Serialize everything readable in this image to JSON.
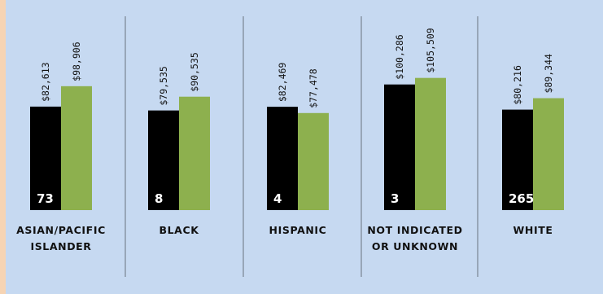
{
  "chart_data": {
    "type": "bar",
    "categories": [
      [
        "ASIAN/PACIFIC",
        "ISLANDER"
      ],
      [
        "BLACK"
      ],
      [
        "HISPANIC"
      ],
      [
        "NOT INDICATED",
        "OR UNKNOWN"
      ],
      [
        "WHITE"
      ]
    ],
    "counts": [
      "73",
      "8",
      "4",
      "3",
      "265"
    ],
    "series": [
      {
        "values": [
          82613,
          79535,
          82469,
          100286,
          80216
        ],
        "labels": [
          "$82,613",
          "$79,535",
          "$82,469",
          "$100,286",
          "$80,216"
        ],
        "color": "#000000"
      },
      {
        "values": [
          98906,
          90535,
          77478,
          105509,
          89344
        ],
        "labels": [
          "$98,906",
          "$90,535",
          "$77,478",
          "$105,509",
          "$89,344"
        ],
        "color": "#8db04e"
      }
    ],
    "ylim": [
      0,
      130000
    ],
    "grid": false,
    "colors": {
      "background": "#c6d9f1",
      "outer": "#f6d4b4",
      "separator": "#6b7280",
      "count_text": "#ffffff",
      "text": "#111111"
    }
  }
}
